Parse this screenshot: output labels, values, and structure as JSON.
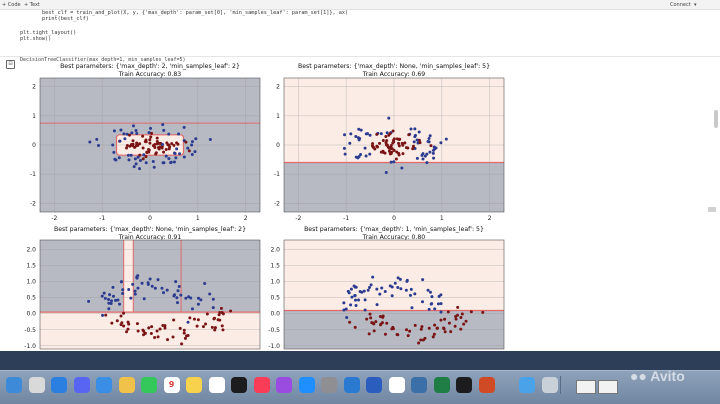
{
  "toolbar": {
    "code_button": "+ Code",
    "text_button": "+ Text",
    "connect_label": "Connect"
  },
  "code": {
    "line1": "best_clf = train_and_plot(X, y, {'max_depth': param_set[0], 'min_samples_leaf': param_set[1]}, ax)",
    "line2": "print(best_clf)",
    "line3": "plt.tight_layout()",
    "line4": "plt.show()"
  },
  "output": {
    "text": "DecisionTreeClassifier(max_depth=1, min_samples_leaf=5)"
  },
  "plots": [
    {
      "title": "Best parameters: {'max_depth': 2, 'min_samples_leaf': 2}",
      "subtitle": "Train Accuracy: 0.83"
    },
    {
      "title": "Best parameters: {'max_depth': None, 'min_samples_leaf': 5}",
      "subtitle": "Train Accuracy: 0.69"
    },
    {
      "title": "Best parameters: {'max_depth': None, 'min_samples_leaf': 2}",
      "subtitle": "Train Accuracy: 0.91"
    },
    {
      "title": "Best parameters: {'max_depth': 1, 'min_samples_leaf': 5}",
      "subtitle": "Train Accuracy: 0.80"
    }
  ],
  "colors": {
    "class0": "#2b3b8f",
    "class1": "#7a1414",
    "region0": "#b7b9c3",
    "region1": "#fbece6"
  },
  "chart_data": [
    {
      "type": "scatter",
      "xlim": [
        -2.3,
        2.3
      ],
      "ylim": [
        -2.3,
        2.3
      ],
      "xticks": [
        -2,
        -1,
        0,
        1,
        2
      ],
      "yticks": [
        -2,
        -1,
        0,
        1,
        2
      ],
      "boundary": "rectangle",
      "region_box": [
        -0.7,
        0.7,
        -0.35,
        0.35
      ]
    },
    {
      "type": "scatter",
      "xlim": [
        -2.3,
        2.3
      ],
      "ylim": [
        -2.3,
        2.3
      ],
      "xticks": [
        -2,
        -1,
        0,
        1,
        2
      ],
      "yticks": [
        -2,
        -1,
        0,
        1,
        2
      ],
      "boundary": "horizontal",
      "split_y": -0.6
    },
    {
      "type": "scatter",
      "xlim": [
        -2.3,
        2.3
      ],
      "ylim": [
        -1.1,
        2.3
      ],
      "xticks": [],
      "yticks": [
        -1.0,
        -0.5,
        0.0,
        0.5,
        1.0,
        1.5,
        2.0
      ],
      "boundary": "multi",
      "splits_x": [
        -0.55,
        -0.35,
        0.65
      ],
      "split_y": 0.05
    },
    {
      "type": "scatter",
      "xlim": [
        -2.3,
        2.3
      ],
      "ylim": [
        -1.1,
        2.3
      ],
      "xticks": [],
      "yticks": [
        -1.0,
        -0.5,
        0.0,
        0.5,
        1.0,
        1.5,
        2.0
      ],
      "boundary": "horizontal",
      "split_y": 0.1
    }
  ],
  "dock": {
    "icons": [
      "finder-icon",
      "launchpad-icon",
      "safari-icon",
      "discord-icon",
      "mail-icon",
      "photos-icon",
      "facetime-icon",
      "calendar-icon",
      "notes-icon",
      "reminders-icon",
      "tv-icon",
      "music-icon",
      "podcasts-icon",
      "appstore-icon",
      "settings-icon",
      "vscode-icon",
      "word-icon",
      "chrome-icon",
      "pgadmin-icon",
      "excel-icon",
      "terminal-icon",
      "powerpoint-icon",
      "downloads-icon",
      "trash-icon"
    ],
    "calendar_day": "9"
  }
}
